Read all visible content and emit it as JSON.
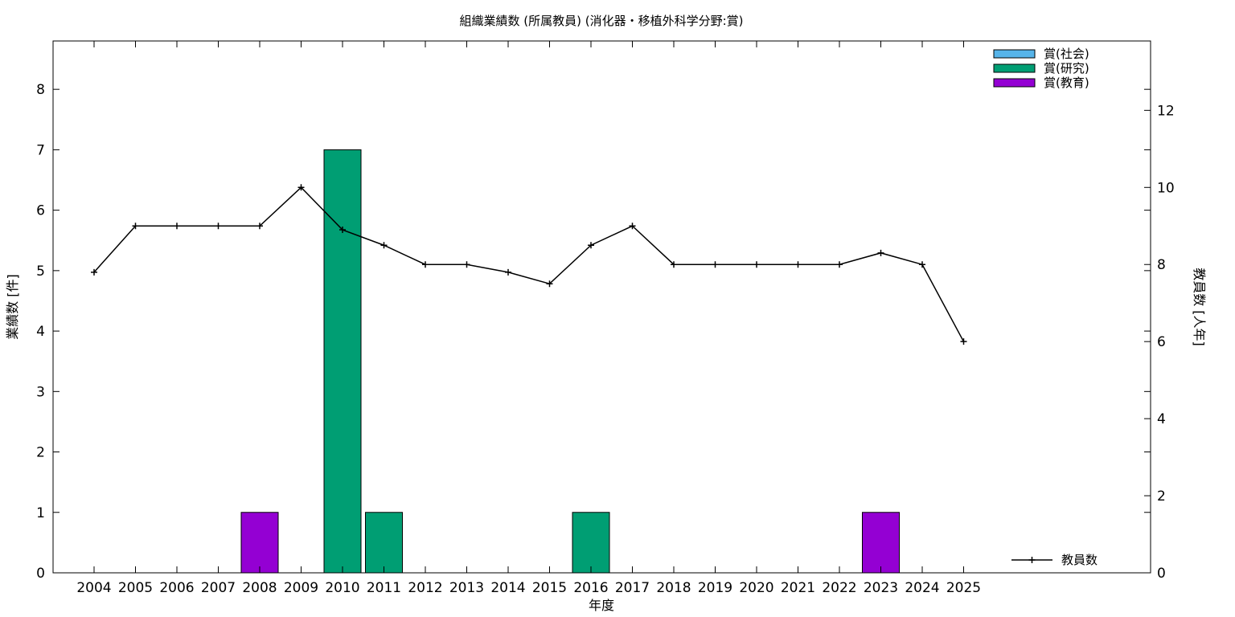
{
  "chart_data": {
    "type": "bar",
    "title": "組織業績数 (所属教員) (消化器・移植外科学分野:賞)",
    "xlabel": "年度",
    "ylabel": "業績数 [件]",
    "y2label": "教員数 [人年]",
    "categories": [
      "2004",
      "2005",
      "2006",
      "2007",
      "2008",
      "2009",
      "2010",
      "2011",
      "2012",
      "2013",
      "2014",
      "2015",
      "2016",
      "2017",
      "2018",
      "2019",
      "2020",
      "2021",
      "2022",
      "2023",
      "2024",
      "2025"
    ],
    "ylim": [
      0,
      8.8
    ],
    "y_ticks": [
      "0",
      "1",
      "2",
      "3",
      "4",
      "5",
      "6",
      "7",
      "8"
    ],
    "y2lim": [
      0,
      13.8
    ],
    "y2_ticks": [
      "0",
      "2",
      "4",
      "6",
      "8",
      "10",
      "12"
    ],
    "series": [
      {
        "name": "賞(社会)",
        "type": "bar",
        "color": "#56b4e9",
        "values": [
          0,
          0,
          0,
          0,
          0,
          0,
          0,
          0,
          0,
          0,
          0,
          0,
          0,
          0,
          0,
          0,
          0,
          0,
          0,
          0,
          0,
          0
        ]
      },
      {
        "name": "賞(研究)",
        "type": "bar",
        "color": "#009e73",
        "values": [
          0,
          0,
          0,
          0,
          0,
          0,
          7,
          1,
          0,
          0,
          0,
          0,
          1,
          0,
          0,
          0,
          0,
          0,
          0,
          0,
          0,
          0
        ]
      },
      {
        "name": "賞(教育)",
        "type": "bar",
        "color": "#9400d3",
        "values": [
          0,
          0,
          0,
          0,
          1,
          0,
          0,
          0,
          0,
          0,
          0,
          0,
          0,
          0,
          0,
          0,
          0,
          0,
          0,
          1,
          0,
          0
        ]
      },
      {
        "name": "教員数",
        "type": "line",
        "axis": "y2",
        "color": "#000000",
        "values": [
          7.8,
          9,
          9,
          9,
          9,
          10,
          8.9,
          8.5,
          8,
          8,
          7.8,
          7.5,
          8.5,
          9,
          8,
          8,
          8,
          8,
          8,
          8.3,
          8,
          6
        ]
      }
    ],
    "legend_position": "top-right",
    "grid": false
  }
}
